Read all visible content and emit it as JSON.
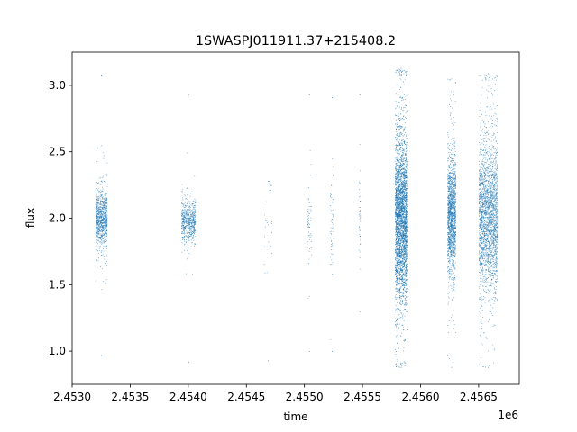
{
  "chart_data": {
    "type": "scatter",
    "title": "1SWASPJ011911.37+215408.2",
    "xlabel": "time",
    "ylabel": "flux",
    "x_offset_label": "1e6",
    "xlim": [
      2453000,
      2456850
    ],
    "ylim": [
      0.75,
      3.25
    ],
    "x_ticks": [
      2453000,
      2453500,
      2454000,
      2454500,
      2455000,
      2455500,
      2456000,
      2456500
    ],
    "x_tick_labels": [
      "2.4530",
      "2.4535",
      "2.4540",
      "2.4545",
      "2.4550",
      "2.4555",
      "2.4560",
      "2.4565"
    ],
    "y_ticks": [
      1.0,
      1.5,
      2.0,
      2.5,
      3.0
    ],
    "y_tick_labels": [
      "1.0",
      "1.5",
      "2.0",
      "2.5",
      "3.0"
    ],
    "grid": false,
    "marker_color": "#1f77b4",
    "series": [
      {
        "clusters": [
          {
            "x_start": 2453200,
            "x_end": 2453300,
            "y_center": 2.0,
            "y_spread": 0.1,
            "y_min": 0.97,
            "y_max": 3.08,
            "density": 900
          },
          {
            "x_start": 2453940,
            "x_end": 2454060,
            "y_center": 1.98,
            "y_spread": 0.07,
            "y_min": 0.92,
            "y_max": 2.93,
            "density": 600
          },
          {
            "x_start": 2454650,
            "x_end": 2454720,
            "y_center": 1.95,
            "y_spread": 0.2,
            "y_min": 0.93,
            "y_max": 2.28,
            "density": 25
          },
          {
            "x_start": 2455020,
            "x_end": 2455060,
            "y_center": 1.98,
            "y_spread": 0.15,
            "y_min": 1.0,
            "y_max": 2.93,
            "density": 60
          },
          {
            "x_start": 2455220,
            "x_end": 2455250,
            "y_center": 1.95,
            "y_spread": 0.2,
            "y_min": 1.0,
            "y_max": 2.91,
            "density": 60
          },
          {
            "x_start": 2455470,
            "x_end": 2455480,
            "y_center": 2.0,
            "y_spread": 0.15,
            "y_min": 1.3,
            "y_max": 2.93,
            "density": 40
          },
          {
            "x_start": 2455780,
            "x_end": 2455880,
            "y_center": 2.0,
            "y_spread": 0.3,
            "y_min": 0.88,
            "y_max": 3.13,
            "density": 4000
          },
          {
            "x_start": 2456230,
            "x_end": 2456300,
            "y_center": 2.02,
            "y_spread": 0.22,
            "y_min": 0.88,
            "y_max": 3.05,
            "density": 1600
          },
          {
            "x_start": 2456500,
            "x_end": 2456660,
            "y_center": 2.02,
            "y_spread": 0.27,
            "y_min": 0.88,
            "y_max": 3.09,
            "density": 2400
          }
        ]
      }
    ]
  }
}
